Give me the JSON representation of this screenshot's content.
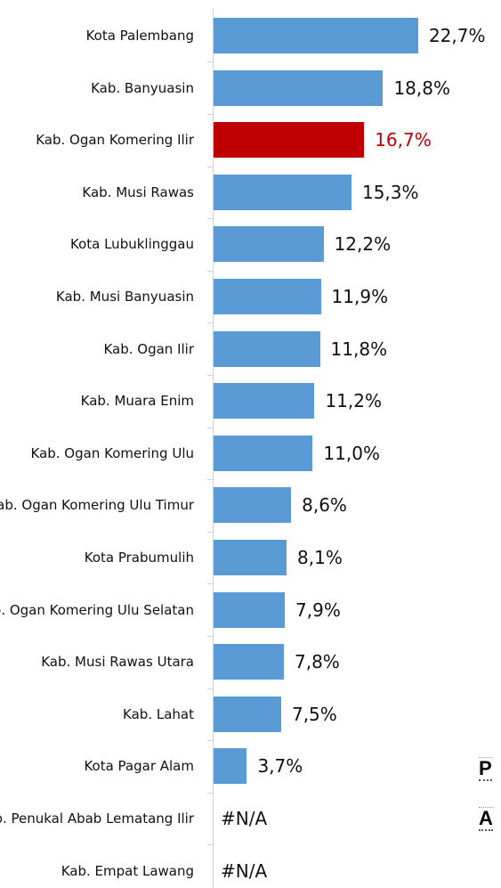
{
  "chart_data": {
    "type": "bar",
    "orientation": "horizontal",
    "categories": [
      "Kota Palembang",
      "Kab. Banyuasin",
      "Kab. Ogan Komering Ilir",
      "Kab. Musi Rawas",
      "Kota Lubuklinggau",
      "Kab. Musi Banyuasin",
      "Kab. Ogan Ilir",
      "Kab. Muara Enim",
      "Kab. Ogan Komering Ulu",
      "Kab. Ogan Komering Ulu Timur",
      "Kota Prabumulih",
      "Kab. Ogan Komering Ulu Selatan",
      "Kab. Musi Rawas Utara",
      "Kab. Lahat",
      "Kota Pagar Alam",
      "Kab. Penukal Abab Lematang Ilir",
      "Kab. Empat Lawang"
    ],
    "values": [
      22.7,
      18.8,
      16.7,
      15.3,
      12.2,
      11.9,
      11.8,
      11.2,
      11.0,
      8.6,
      8.1,
      7.9,
      7.8,
      7.5,
      3.7,
      null,
      null
    ],
    "value_labels": [
      "22,7%",
      "18,8%",
      "16,7%",
      "15,3%",
      "12,2%",
      "11,9%",
      "11,8%",
      "11,2%",
      "11,0%",
      "8,6%",
      "8,1%",
      "7,9%",
      "7,8%",
      "7,5%",
      "3,7%",
      "#N/A",
      "#N/A"
    ],
    "color": "#5b9bd5",
    "highlight_index": 2,
    "highlight_color": "#c00000"
  },
  "fragments": [
    "P",
    "A"
  ]
}
